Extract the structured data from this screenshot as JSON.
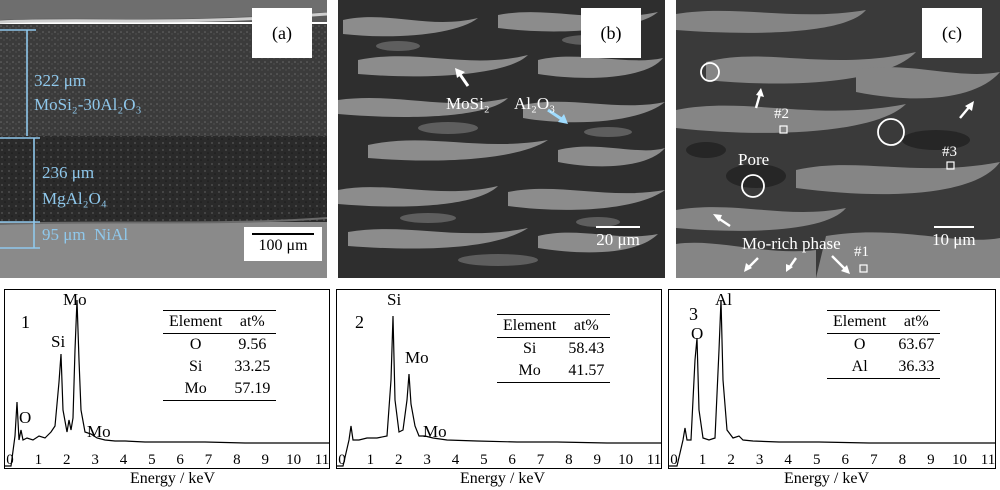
{
  "panels": {
    "a": {
      "label": "(a)",
      "scale": "100 μm",
      "layers": [
        {
          "thickness": "322 μm",
          "name": "MoSi₂-30Al₂O₃"
        },
        {
          "thickness": "236 μm",
          "name": "MgAl₂O₄"
        },
        {
          "thickness": "95 μm",
          "name": "NiAl"
        }
      ]
    },
    "b": {
      "label": "(b)",
      "scale": "20 μm",
      "labels": {
        "mosi2": "MoSi₂",
        "al2o3": "Al₂O₃"
      }
    },
    "c": {
      "label": "(c)",
      "scale": "10 μm",
      "labels": {
        "p2": "#2",
        "p3": "#3",
        "p1": "#1",
        "pore": "Pore",
        "mo_rich": "Mo-rich phase"
      }
    }
  },
  "spectra": [
    {
      "num": "1",
      "peaks": [
        "O",
        "Si",
        "Mo",
        "Mo"
      ],
      "table": {
        "headers": [
          "Element",
          "at%"
        ],
        "rows": [
          [
            "O",
            "9.56"
          ],
          [
            "Si",
            "33.25"
          ],
          [
            "Mo",
            "57.19"
          ]
        ]
      }
    },
    {
      "num": "2",
      "peaks": [
        "Si",
        "Mo",
        "Mo"
      ],
      "table": {
        "headers": [
          "Element",
          "at%"
        ],
        "rows": [
          [
            "Si",
            "58.43"
          ],
          [
            "Mo",
            "41.57"
          ]
        ]
      }
    },
    {
      "num": "3",
      "peaks": [
        "O",
        "Al"
      ],
      "table": {
        "headers": [
          "Element",
          "at%"
        ],
        "rows": [
          [
            "O",
            "63.67"
          ],
          [
            "Al",
            "36.33"
          ]
        ]
      }
    }
  ],
  "x_axis": {
    "label": "Energy / keV",
    "ticks": [
      "0",
      "1",
      "2",
      "3",
      "4",
      "5",
      "6",
      "7",
      "8",
      "9",
      "10",
      "11"
    ]
  },
  "colors": {
    "annotation": "#8fc8ec",
    "sem_dark": "#3a3a3a",
    "sem_light": "#8a8a8a"
  }
}
